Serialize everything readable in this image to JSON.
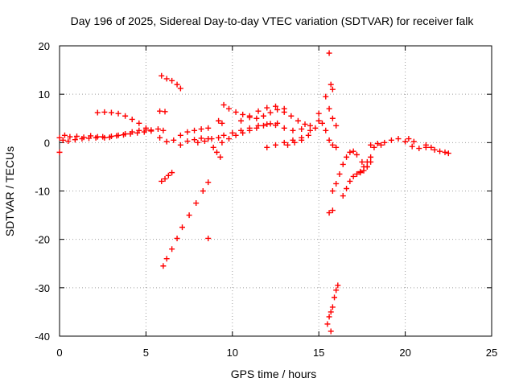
{
  "chart_data": {
    "type": "scatter",
    "title": "Day 196 of 2025, Sidereal Day-to-day VTEC variation (SDTVAR) for receiver falk",
    "xlabel": "GPS time / hours",
    "ylabel": "SDTVAR / TECUs",
    "xlim": [
      0,
      25
    ],
    "ylim": [
      -40,
      20
    ],
    "xticks": [
      "0",
      "5",
      "10",
      "15",
      "20",
      "25"
    ],
    "yticks": [
      "20",
      "10",
      "0",
      "-10",
      "-20",
      "-30",
      "-40"
    ],
    "xtick_values": [
      0,
      5,
      10,
      15,
      20,
      25
    ],
    "ytick_values": [
      20,
      10,
      0,
      -10,
      -20,
      -30,
      -40
    ],
    "grid": true,
    "marker": "+",
    "color": "#ff0000",
    "series": [
      {
        "name": "trace-1",
        "x": [
          0.0,
          0.3,
          0.6,
          1.0,
          1.4,
          1.8,
          2.2,
          2.6,
          3.0,
          3.4,
          3.8,
          4.2,
          4.6,
          5.0,
          5.3
        ],
        "y": [
          1.0,
          1.5,
          1.2,
          1.3,
          1.1,
          1.4,
          1.2,
          1.0,
          1.3,
          1.5,
          1.8,
          2.2,
          2.5,
          2.6,
          2.4
        ]
      },
      {
        "name": "trace-2",
        "x": [
          0.2,
          0.5,
          0.9,
          1.3,
          1.7,
          2.1,
          2.5,
          2.9,
          3.3,
          3.7,
          4.1,
          4.5,
          4.9,
          5.3,
          5.7,
          6.0
        ],
        "y": [
          0.5,
          0.3,
          0.6,
          0.8,
          0.9,
          1.0,
          1.2,
          1.1,
          1.4,
          1.6,
          1.8,
          2.0,
          2.2,
          2.6,
          2.8,
          2.5
        ]
      },
      {
        "name": "trace-3",
        "x": [
          2.2,
          2.6,
          3.0,
          3.4,
          3.8,
          4.2,
          4.6,
          5.0
        ],
        "y": [
          6.2,
          6.3,
          6.2,
          6.0,
          5.5,
          4.8,
          4.0,
          3.0
        ]
      },
      {
        "name": "trace-4",
        "x": [
          5.9,
          6.2,
          6.5,
          6.8,
          7.0
        ],
        "y": [
          13.8,
          13.2,
          12.8,
          12.0,
          11.2
        ]
      },
      {
        "name": "trace-5",
        "x": [
          5.8,
          6.1
        ],
        "y": [
          6.5,
          6.4
        ]
      },
      {
        "name": "trace-6",
        "x": [
          6.0,
          6.2,
          6.5,
          6.8,
          7.1,
          7.5,
          7.9,
          8.3,
          8.6
        ],
        "y": [
          -25.5,
          -24.0,
          -22.0,
          -19.8,
          -17.5,
          -15.0,
          -12.5,
          -10.0,
          -8.2
        ]
      },
      {
        "name": "trace-7",
        "x": [
          5.9,
          6.1,
          6.3,
          6.5
        ],
        "y": [
          -8.0,
          -7.5,
          -6.8,
          -6.2
        ]
      },
      {
        "name": "trace-8",
        "x": [
          8.6
        ],
        "y": [
          -19.8
        ]
      },
      {
        "name": "trace-9",
        "x": [
          5.8,
          6.2,
          6.6,
          7.0,
          7.4,
          7.8,
          8.2,
          8.6
        ],
        "y": [
          1.0,
          0.2,
          0.5,
          1.5,
          2.2,
          2.5,
          2.8,
          3.0
        ]
      },
      {
        "name": "trace-10",
        "x": [
          7.0,
          7.4,
          7.8,
          8.2,
          8.6
        ],
        "y": [
          -0.5,
          0.3,
          0.6,
          0.9,
          0.8
        ]
      },
      {
        "name": "trace-11",
        "x": [
          8.0,
          8.4,
          8.8,
          9.2
        ],
        "y": [
          0.0,
          0.3,
          0.8,
          1.0
        ]
      },
      {
        "name": "trace-12",
        "x": [
          8.9,
          9.1,
          9.3
        ],
        "y": [
          -1.0,
          -2.0,
          -3.0
        ]
      },
      {
        "name": "trace-13",
        "x": [
          9.2,
          9.4
        ],
        "y": [
          4.5,
          4.0
        ]
      },
      {
        "name": "trace-14",
        "x": [
          9.5,
          10.0,
          10.5,
          11.0,
          11.5,
          12.0,
          12.5,
          13.0,
          13.5,
          14.0,
          14.5,
          15.0
        ],
        "y": [
          1.5,
          2.0,
          2.5,
          3.0,
          3.5,
          3.8,
          3.6,
          3.0,
          2.5,
          2.8,
          3.5,
          4.5
        ]
      },
      {
        "name": "trace-15",
        "x": [
          9.4,
          9.8,
          10.2,
          10.6,
          11.0,
          11.4,
          11.8,
          12.2,
          12.6
        ],
        "y": [
          0.0,
          0.8,
          1.5,
          2.0,
          2.5,
          3.0,
          3.5,
          3.9,
          4.0
        ]
      },
      {
        "name": "trace-16",
        "x": [
          9.5,
          9.8,
          10.2,
          10.6,
          11.0,
          11.4,
          11.8,
          12.2,
          12.6,
          13.0,
          13.4,
          13.8,
          14.2
        ],
        "y": [
          7.8,
          7.0,
          6.3,
          5.8,
          5.2,
          5.0,
          5.5,
          6.2,
          6.8,
          6.3,
          5.5,
          4.5,
          3.8
        ]
      },
      {
        "name": "trace-17",
        "x": [
          10.5,
          11.0,
          11.5,
          12.0,
          12.5,
          13.0
        ],
        "y": [
          4.5,
          5.5,
          6.5,
          7.2,
          7.5,
          7.0
        ]
      },
      {
        "name": "trace-18",
        "x": [
          13.2,
          13.6,
          14.0,
          14.4,
          14.8
        ],
        "y": [
          -0.5,
          0.0,
          0.5,
          1.5,
          3.0
        ]
      },
      {
        "name": "trace-19",
        "x": [
          12.0,
          12.5,
          13.0,
          13.5,
          14.0,
          14.5,
          15.0
        ],
        "y": [
          -1.0,
          -0.5,
          0.0,
          0.5,
          1.0,
          2.5,
          4.5
        ]
      },
      {
        "name": "trace-20",
        "x": [
          15.0,
          15.2,
          15.4,
          15.6,
          15.8,
          16.0
        ],
        "y": [
          6.0,
          4.0,
          2.5,
          0.5,
          -0.5,
          -1.0
        ]
      },
      {
        "name": "trace-21",
        "x": [
          15.4,
          15.6,
          15.8,
          16.0
        ],
        "y": [
          9.5,
          7.0,
          5.0,
          3.5
        ]
      },
      {
        "name": "trace-22",
        "x": [
          15.6,
          15.7,
          15.8
        ],
        "y": [
          18.5,
          12.0,
          11.0
        ]
      },
      {
        "name": "trace-23",
        "x": [
          15.8,
          16.0,
          16.2,
          16.4,
          16.6,
          16.8,
          17.0,
          17.2,
          17.5,
          17.8,
          18.0
        ],
        "y": [
          -10.0,
          -8.5,
          -6.5,
          -4.5,
          -3.0,
          -2.0,
          -1.8,
          -2.5,
          -4.0,
          -5.0,
          -4.0
        ]
      },
      {
        "name": "trace-24",
        "x": [
          16.4,
          16.6,
          16.8,
          17.0,
          17.2,
          17.4,
          17.6,
          17.8
        ],
        "y": [
          -11.0,
          -9.5,
          -8.0,
          -7.0,
          -6.5,
          -6.2,
          -5.8,
          -5.0
        ]
      },
      {
        "name": "trace-25",
        "x": [
          15.6,
          15.8
        ],
        "y": [
          -14.5,
          -14.0
        ]
      },
      {
        "name": "trace-26",
        "x": [
          15.5,
          15.6,
          15.7,
          15.8,
          15.9,
          16.0,
          16.1
        ],
        "y": [
          -37.5,
          -36.0,
          -35.0,
          -34.0,
          -32.0,
          -30.5,
          -29.5
        ]
      },
      {
        "name": "trace-27",
        "x": [
          15.7
        ],
        "y": [
          -39.0
        ]
      },
      {
        "name": "trace-28",
        "x": [
          17.4,
          17.6,
          17.8,
          18.0
        ],
        "y": [
          -6.0,
          -5.0,
          -4.0,
          -3.0
        ]
      },
      {
        "name": "trace-29",
        "x": [
          18.0,
          18.4,
          18.8,
          19.2,
          19.6,
          20.0
        ],
        "y": [
          -0.5,
          -0.2,
          0.0,
          0.5,
          0.8,
          0.2
        ]
      },
      {
        "name": "trace-30",
        "x": [
          18.2,
          18.6
        ],
        "y": [
          -1.0,
          -0.5
        ]
      },
      {
        "name": "trace-31",
        "x": [
          20.2,
          20.5
        ],
        "y": [
          0.8,
          0.2
        ]
      },
      {
        "name": "trace-32",
        "x": [
          20.4,
          20.8,
          21.2
        ],
        "y": [
          -0.8,
          -1.2,
          -1.0
        ]
      },
      {
        "name": "trace-33",
        "x": [
          21.2,
          21.5
        ],
        "y": [
          -0.5,
          -1.0
        ]
      },
      {
        "name": "trace-34",
        "x": [
          21.7,
          22.0,
          22.3,
          22.5
        ],
        "y": [
          -1.5,
          -1.8,
          -2.0,
          -2.2
        ]
      },
      {
        "name": "trace-35",
        "x": [
          0.0
        ],
        "y": [
          -2.0
        ]
      }
    ]
  }
}
